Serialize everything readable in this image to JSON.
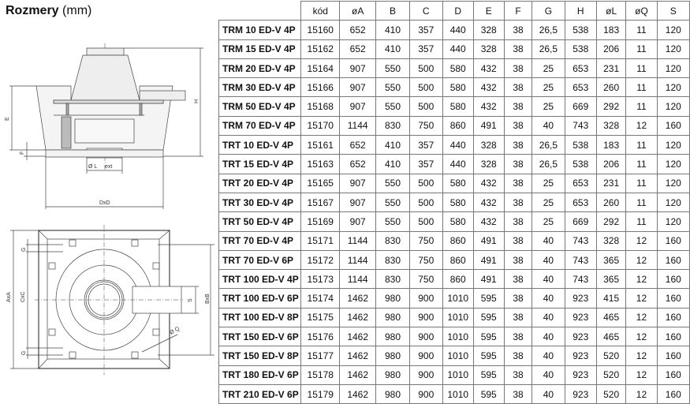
{
  "heading": {
    "bold": "Rozmery",
    "unit": "(mm)"
  },
  "drawing_labels": {
    "H": "H",
    "E": "E",
    "F": "F",
    "L": "Ø L",
    "ext": "ext",
    "DxD": "DxD",
    "AxA": "AxA",
    "CxC": "CxC",
    "BxB": "BxB",
    "G": "G",
    "S": "S",
    "Q": "Ø Q"
  },
  "table": {
    "headers": [
      "",
      "kód",
      "øA",
      "B",
      "C",
      "D",
      "E",
      "F",
      "G",
      "H",
      "øL",
      "øQ",
      "S"
    ],
    "rows": [
      [
        "TRM 10 ED-V 4P",
        "15160",
        "652",
        "410",
        "357",
        "440",
        "328",
        "38",
        "26,5",
        "538",
        "183",
        "11",
        "120"
      ],
      [
        "TRM 15 ED-V 4P",
        "15162",
        "652",
        "410",
        "357",
        "440",
        "328",
        "38",
        "26,5",
        "538",
        "206",
        "11",
        "120"
      ],
      [
        "TRM 20 ED-V 4P",
        "15164",
        "907",
        "550",
        "500",
        "580",
        "432",
        "38",
        "25",
        "653",
        "231",
        "11",
        "120"
      ],
      [
        "TRM 30 ED-V 4P",
        "15166",
        "907",
        "550",
        "500",
        "580",
        "432",
        "38",
        "25",
        "653",
        "260",
        "11",
        "120"
      ],
      [
        "TRM 50 ED-V 4P",
        "15168",
        "907",
        "550",
        "500",
        "580",
        "432",
        "38",
        "25",
        "669",
        "292",
        "11",
        "120"
      ],
      [
        "TRM 70 ED-V 4P",
        "15170",
        "1144",
        "830",
        "750",
        "860",
        "491",
        "38",
        "40",
        "743",
        "328",
        "12",
        "160"
      ],
      [
        "TRT 10 ED-V 4P",
        "15161",
        "652",
        "410",
        "357",
        "440",
        "328",
        "38",
        "26,5",
        "538",
        "183",
        "11",
        "120"
      ],
      [
        "TRT 15 ED-V 4P",
        "15163",
        "652",
        "410",
        "357",
        "440",
        "328",
        "38",
        "26,5",
        "538",
        "206",
        "11",
        "120"
      ],
      [
        "TRT 20 ED-V 4P",
        "15165",
        "907",
        "550",
        "500",
        "580",
        "432",
        "38",
        "25",
        "653",
        "231",
        "11",
        "120"
      ],
      [
        "TRT 30 ED-V 4P",
        "15167",
        "907",
        "550",
        "500",
        "580",
        "432",
        "38",
        "25",
        "653",
        "260",
        "11",
        "120"
      ],
      [
        "TRT 50 ED-V 4P",
        "15169",
        "907",
        "550",
        "500",
        "580",
        "432",
        "38",
        "25",
        "669",
        "292",
        "11",
        "120"
      ],
      [
        "TRT 70 ED-V 4P",
        "15171",
        "1144",
        "830",
        "750",
        "860",
        "491",
        "38",
        "40",
        "743",
        "328",
        "12",
        "160"
      ],
      [
        "TRT 70 ED-V 6P",
        "15172",
        "1144",
        "830",
        "750",
        "860",
        "491",
        "38",
        "40",
        "743",
        "365",
        "12",
        "160"
      ],
      [
        "TRT 100 ED-V 4P",
        "15173",
        "1144",
        "830",
        "750",
        "860",
        "491",
        "38",
        "40",
        "743",
        "365",
        "12",
        "160"
      ],
      [
        "TRT 100 ED-V 6P",
        "15174",
        "1462",
        "980",
        "900",
        "1010",
        "595",
        "38",
        "40",
        "923",
        "415",
        "12",
        "160"
      ],
      [
        "TRT 100 ED-V 8P",
        "15175",
        "1462",
        "980",
        "900",
        "1010",
        "595",
        "38",
        "40",
        "923",
        "465",
        "12",
        "160"
      ],
      [
        "TRT 150 ED-V 6P",
        "15176",
        "1462",
        "980",
        "900",
        "1010",
        "595",
        "38",
        "40",
        "923",
        "465",
        "12",
        "160"
      ],
      [
        "TRT 150 ED-V 8P",
        "15177",
        "1462",
        "980",
        "900",
        "1010",
        "595",
        "38",
        "40",
        "923",
        "520",
        "12",
        "160"
      ],
      [
        "TRT 180 ED-V 6P",
        "15178",
        "1462",
        "980",
        "900",
        "1010",
        "595",
        "38",
        "40",
        "923",
        "520",
        "12",
        "160"
      ],
      [
        "TRT 210 ED-V 6P",
        "15179",
        "1462",
        "980",
        "900",
        "1010",
        "595",
        "38",
        "40",
        "923",
        "520",
        "12",
        "160"
      ]
    ]
  }
}
